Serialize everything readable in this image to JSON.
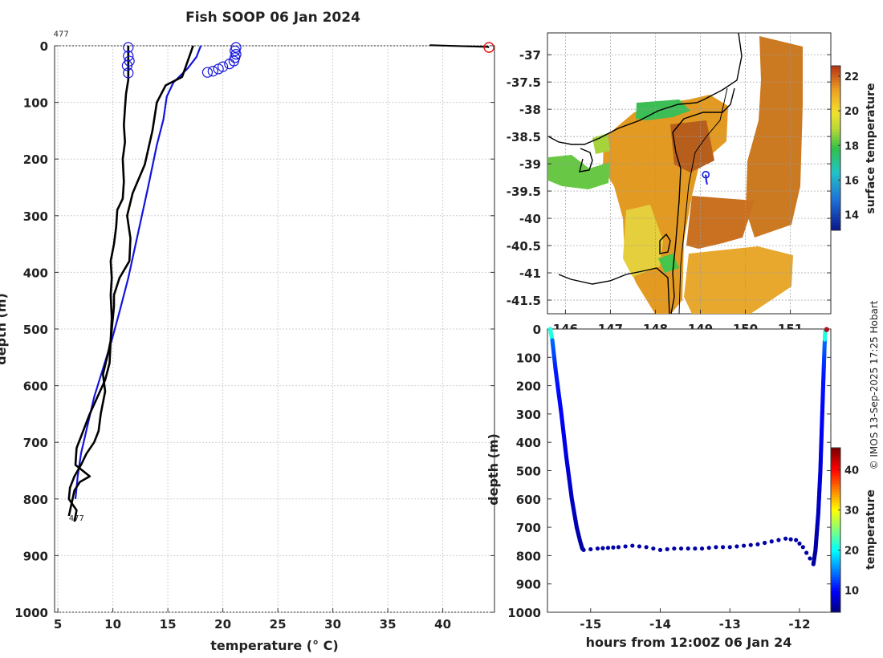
{
  "figure": {
    "title": "Fish SOOP 06 Jan 2024",
    "credit": "© IMOS 13-Sep-2025 17:25 Hobart"
  },
  "chart_data": [
    {
      "type": "line",
      "name": "profile",
      "xlabel": "temperature (° C)",
      "ylabel": "depth (m)",
      "xlim": [
        4.7,
        44.7
      ],
      "ylim": [
        1000,
        0
      ],
      "x_ticks": [
        5,
        10,
        15,
        20,
        25,
        30,
        35,
        40
      ],
      "y_ticks": [
        0,
        100,
        200,
        300,
        400,
        500,
        600,
        700,
        800,
        900,
        1000
      ],
      "grid": true,
      "annotations": [
        {
          "text": "477",
          "x": 4.6,
          "y": -22
        },
        {
          "text": "477",
          "x": 6.0,
          "y": 833
        }
      ],
      "series": [
        {
          "name": "climatology",
          "color": "#1414dc",
          "x": [
            18.0,
            17.6,
            16.8,
            15.5,
            14.9,
            14.6,
            14.0,
            13.2,
            12.3,
            11.4,
            10.6,
            9.9,
            9.1,
            8.3,
            7.7,
            7.1,
            6.8,
            6.6
          ],
          "y": [
            0,
            20,
            40,
            65,
            90,
            130,
            175,
            250,
            330,
            410,
            470,
            520,
            570,
            620,
            670,
            720,
            760,
            800
          ]
        },
        {
          "name": "profile-a",
          "color": "#000000",
          "x": [
            17.3,
            16.3,
            14.8,
            14.0,
            13.6,
            12.9,
            11.8,
            11.3,
            11.6,
            11.5,
            10.6,
            10.1,
            10.1,
            9.8,
            9.6,
            9.1,
            9.3,
            8.9,
            8.7,
            8.3,
            7.6,
            7.1,
            6.5,
            6.1,
            6.0,
            6.7,
            6.5
          ],
          "y": [
            0,
            55,
            70,
            100,
            150,
            210,
            260,
            300,
            340,
            380,
            410,
            440,
            460,
            520,
            540,
            580,
            610,
            650,
            680,
            700,
            720,
            740,
            760,
            780,
            800,
            820,
            840
          ]
        },
        {
          "name": "profile-b",
          "color": "#000000",
          "x": [
            11.4,
            11.4,
            11.2,
            11.1,
            11.0,
            11.1,
            10.9,
            11.0,
            10.9,
            10.4,
            10.3,
            10.1,
            9.8,
            9.9,
            9.8,
            9.9,
            9.8,
            9.7,
            9.3,
            8.6,
            7.9,
            7.1,
            6.7,
            6.6,
            7.9,
            7.0,
            6.5,
            6.0
          ],
          "y": [
            0,
            60,
            85,
            110,
            140,
            170,
            200,
            240,
            270,
            290,
            320,
            350,
            380,
            410,
            440,
            480,
            520,
            560,
            590,
            620,
            650,
            690,
            710,
            740,
            760,
            770,
            785,
            830
          ]
        }
      ],
      "markers": {
        "color": "#1414dc",
        "x": [
          11.4,
          11.4,
          11.5,
          11.3,
          11.4,
          21.2,
          21.1,
          21.2,
          21.1,
          21.0,
          20.6,
          20.0,
          19.6,
          19.1,
          18.6
        ],
        "y": [
          3,
          18,
          27,
          35,
          48,
          3,
          9,
          15,
          21,
          27,
          32,
          37,
          41,
          45,
          47
        ]
      },
      "outlier": {
        "x": [
          38.8,
          44.1,
          44.2
        ],
        "y": [
          -1,
          2,
          3
        ],
        "marker_color": "#e01010"
      }
    },
    {
      "type": "heatmap",
      "name": "map",
      "xlabel": "",
      "ylabel": "",
      "xlim": [
        145.6,
        151.9
      ],
      "ylim": [
        -41.75,
        -36.6
      ],
      "x_ticks": [
        146,
        147,
        148,
        149,
        150,
        151
      ],
      "y_ticks": [
        -37,
        -37.5,
        -38,
        -38.5,
        -39,
        -39.5,
        -40,
        -40.5,
        -41,
        -41.5
      ],
      "colorbar": {
        "label": "surface temperature",
        "range": [
          13.1,
          22.6
        ],
        "ticks": [
          14,
          16,
          18,
          20,
          22
        ]
      },
      "track": {
        "lon": [
          149.12,
          149.13,
          149.15
        ],
        "lat": [
          -39.2,
          -39.3,
          -39.38
        ]
      },
      "grid": true
    },
    {
      "type": "scatter",
      "name": "track",
      "xlabel": "hours from 12:00Z 06 Jan 24",
      "ylabel": "depth (m)",
      "xlim": [
        -15.62,
        -11.55
      ],
      "ylim": [
        1000,
        0
      ],
      "x_ticks": [
        -15,
        -14,
        -13,
        -12
      ],
      "y_ticks": [
        0,
        100,
        200,
        300,
        400,
        500,
        600,
        700,
        800,
        900,
        1000
      ],
      "colorbar": {
        "label": "temperature",
        "range": [
          4.5,
          45.5
        ],
        "ticks": [
          10,
          20,
          30,
          40
        ]
      },
      "descent": {
        "t": [
          -15.58,
          -15.55,
          -15.5,
          -15.42,
          -15.35,
          -15.27,
          -15.2,
          -15.15,
          -15.12,
          -15.1
        ],
        "z": [
          0,
          40,
          150,
          300,
          450,
          600,
          700,
          750,
          775,
          780
        ]
      },
      "floor": {
        "t": [
          -15.1,
          -14.9,
          -14.6,
          -14.4,
          -14.2,
          -14.0,
          -13.8,
          -13.6,
          -13.4,
          -13.2,
          -13.0,
          -12.8,
          -12.6,
          -12.4,
          -12.2,
          -12.05,
          -11.95,
          -11.85,
          -11.8
        ],
        "z": [
          780,
          775,
          770,
          765,
          770,
          780,
          775,
          775,
          775,
          770,
          770,
          765,
          760,
          750,
          740,
          745,
          770,
          810,
          830
        ]
      },
      "ascent": {
        "t": [
          -11.8,
          -11.77,
          -11.73,
          -11.7,
          -11.68,
          -11.66,
          -11.64,
          -11.63
        ],
        "z": [
          830,
          780,
          650,
          500,
          350,
          200,
          60,
          0
        ]
      },
      "surface_point": {
        "t": -11.61,
        "z": 2
      }
    }
  ]
}
